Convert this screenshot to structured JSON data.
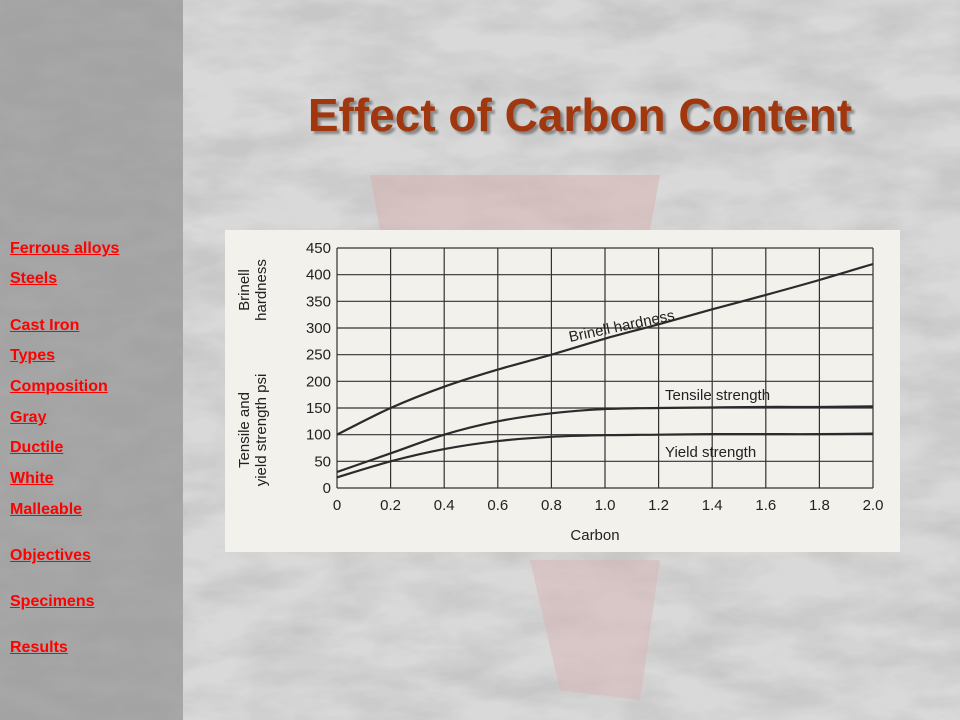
{
  "title": "Effect of Carbon Content",
  "nav": {
    "items": [
      {
        "label": "Ferrous alloys"
      },
      {
        "label": "Steels"
      },
      {
        "label": "Cast Iron"
      },
      {
        "label": "Types"
      },
      {
        "label": "Composition"
      },
      {
        "label": "Gray"
      },
      {
        "label": "Ductile"
      },
      {
        "label": "White"
      },
      {
        "label": "Malleable"
      },
      {
        "label": "Objectives"
      },
      {
        "label": "Specimens"
      },
      {
        "label": "Results"
      }
    ]
  },
  "colors": {
    "title": "#a0370e",
    "link": "#ff0000",
    "chart_bg": "#f3f1ec",
    "line": "#2b2b2b"
  },
  "chart_data": {
    "type": "line",
    "xlabel": "Carbon",
    "ylabel_top": [
      "Brinell",
      "hardness"
    ],
    "ylabel_bottom": [
      "Tensile and",
      "yield strength psi"
    ],
    "xlim": [
      0,
      2.0
    ],
    "ylim": [
      0,
      450
    ],
    "x_ticks": [
      "0",
      "0.2",
      "0.4",
      "0.6",
      "0.8",
      "1.0",
      "1.2",
      "1.4",
      "1.6",
      "1.8",
      "2.0"
    ],
    "y_ticks": [
      "0",
      "50",
      "100",
      "150",
      "200",
      "250",
      "300",
      "350",
      "400",
      "450"
    ],
    "grid": true,
    "series": [
      {
        "name": "Brinell hardness",
        "x": [
          0,
          0.2,
          0.4,
          0.6,
          0.8,
          1.0,
          1.2,
          1.4,
          1.6,
          1.8,
          2.0
        ],
        "y": [
          100,
          150,
          190,
          222,
          250,
          280,
          307,
          335,
          362,
          390,
          420
        ]
      },
      {
        "name": "Tensile strength",
        "x": [
          0,
          0.2,
          0.4,
          0.6,
          0.8,
          1.0,
          1.2,
          1.4,
          1.6,
          1.8,
          2.0
        ],
        "y": [
          30,
          65,
          100,
          125,
          140,
          148,
          150,
          151,
          152,
          152,
          153
        ]
      },
      {
        "name": "Yield strength",
        "x": [
          0,
          0.2,
          0.4,
          0.6,
          0.8,
          1.0,
          1.2,
          1.4,
          1.6,
          1.8,
          2.0
        ],
        "y": [
          20,
          50,
          73,
          88,
          96,
          99,
          100,
          101,
          101,
          101,
          102
        ]
      }
    ]
  }
}
